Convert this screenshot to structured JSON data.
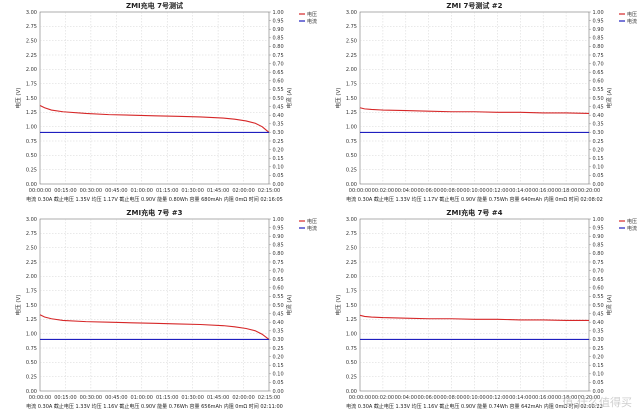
{
  "watermark": "值 什么值得买",
  "chart_data": [
    {
      "type": "line",
      "title": "ZMI充电 7号测试",
      "ylabel": "电压 (V)",
      "y2label": "电流 (A)",
      "ylim": [
        0,
        3.0
      ],
      "y2lim": [
        0,
        1.0
      ],
      "yticks": [
        "0.00",
        "0.25",
        "0.50",
        "0.75",
        "1.00",
        "1.25",
        "1.50",
        "1.75",
        "2.00",
        "2.25",
        "2.50",
        "2.75",
        "3.00"
      ],
      "y2ticks": [
        "0.00",
        "0.05",
        "0.10",
        "0.15",
        "0.20",
        "0.25",
        "0.30",
        "0.35",
        "0.40",
        "0.45",
        "0.50",
        "0.55",
        "0.60",
        "0.65",
        "0.70",
        "0.75",
        "0.80",
        "0.85",
        "0.90",
        "0.95",
        "1.00"
      ],
      "xticks": [
        "00:00:00",
        "00:15:00",
        "00:30:00",
        "00:45:00",
        "01:00:00",
        "01:15:00",
        "01:30:00",
        "01:45:00",
        "02:00:00",
        "02:15:00"
      ],
      "legend": [
        "电压",
        "电流"
      ],
      "legend_position": "top-right",
      "colors": {
        "voltage": "#d62728",
        "current": "#1f1fbf"
      },
      "x": [
        0,
        0.02,
        0.05,
        0.1,
        0.2,
        0.3,
        0.4,
        0.5,
        0.6,
        0.7,
        0.8,
        0.85,
        0.9,
        0.94,
        0.97,
        1.0
      ],
      "series": [
        {
          "name": "电压",
          "axis": "left",
          "values": [
            1.37,
            1.33,
            1.29,
            1.26,
            1.23,
            1.21,
            1.2,
            1.19,
            1.18,
            1.17,
            1.15,
            1.13,
            1.1,
            1.06,
            1.0,
            0.9
          ]
        },
        {
          "name": "电流",
          "axis": "right",
          "values": [
            0.3,
            0.3,
            0.3,
            0.3,
            0.3,
            0.3,
            0.3,
            0.3,
            0.3,
            0.3,
            0.3,
            0.3,
            0.3,
            0.3,
            0.3,
            0.3
          ]
        }
      ],
      "footer": "电流 0.30A  截止电压 1.35V  均压 1.17V  截止电压 0.90V  能量 0.80Wh  容量 680mAh  内阻 0mΩ  时间 02:16:05",
      "grid": true
    },
    {
      "type": "line",
      "title": "ZMI 7号测试 #2",
      "ylabel": "电压 (V)",
      "y2label": "电流 (A)",
      "ylim": [
        0,
        3.0
      ],
      "y2lim": [
        0,
        1.0
      ],
      "yticks": [
        "0.00",
        "0.25",
        "0.50",
        "0.75",
        "1.00",
        "1.25",
        "1.50",
        "1.75",
        "2.00",
        "2.25",
        "2.50",
        "2.75",
        "3.00"
      ],
      "y2ticks": [
        "0.00",
        "0.05",
        "0.10",
        "0.15",
        "0.20",
        "0.25",
        "0.30",
        "0.35",
        "0.40",
        "0.45",
        "0.50",
        "0.55",
        "0.60",
        "0.65",
        "0.70",
        "0.75",
        "0.80",
        "0.85",
        "0.90",
        "0.95",
        "1.00"
      ],
      "xticks": [
        "00:00:00",
        "00:02:00",
        "00:04:00",
        "00:06:00",
        "00:08:00",
        "00:10:00",
        "00:12:00",
        "00:14:00",
        "00:16:00",
        "00:18:00",
        "00:20:00"
      ],
      "legend": [
        "电压",
        "电流"
      ],
      "legend_position": "top-right",
      "colors": {
        "voltage": "#d62728",
        "current": "#1f1fbf"
      },
      "x": [
        0,
        0.02,
        0.05,
        0.1,
        0.2,
        0.3,
        0.4,
        0.5,
        0.6,
        0.7,
        0.8,
        0.9,
        1.0
      ],
      "series": [
        {
          "name": "电压",
          "axis": "left",
          "values": [
            1.33,
            1.31,
            1.3,
            1.29,
            1.28,
            1.27,
            1.26,
            1.26,
            1.25,
            1.25,
            1.24,
            1.24,
            1.23
          ]
        },
        {
          "name": "电流",
          "axis": "right",
          "values": [
            0.3,
            0.3,
            0.3,
            0.3,
            0.3,
            0.3,
            0.3,
            0.3,
            0.3,
            0.3,
            0.3,
            0.3,
            0.3
          ]
        }
      ],
      "footer": "电流 0.30A  截止电压 1.33V  均压 1.17V  截止电压 0.90V  能量 0.75Wh  容量 640mAh  内阻 0mΩ  时间 02:08:02",
      "grid": true
    },
    {
      "type": "line",
      "title": "ZMI充电 7号 #3",
      "ylabel": "电压 (V)",
      "y2label": "电流 (A)",
      "ylim": [
        0,
        3.0
      ],
      "y2lim": [
        0,
        1.0
      ],
      "yticks": [
        "0.00",
        "0.25",
        "0.50",
        "0.75",
        "1.00",
        "1.25",
        "1.50",
        "1.75",
        "2.00",
        "2.25",
        "2.50",
        "2.75",
        "3.00"
      ],
      "y2ticks": [
        "0.00",
        "0.05",
        "0.10",
        "0.15",
        "0.20",
        "0.25",
        "0.30",
        "0.35",
        "0.40",
        "0.45",
        "0.50",
        "0.55",
        "0.60",
        "0.65",
        "0.70",
        "0.75",
        "0.80",
        "0.85",
        "0.90",
        "0.95",
        "1.00"
      ],
      "xticks": [
        "00:00:00",
        "00:15:00",
        "00:30:00",
        "00:45:00",
        "01:00:00",
        "01:15:00",
        "01:30:00",
        "01:45:00",
        "02:00:00",
        "02:15:00"
      ],
      "legend": [
        "电压",
        "电流"
      ],
      "legend_position": "top-right",
      "colors": {
        "voltage": "#d62728",
        "current": "#1f1fbf"
      },
      "x": [
        0,
        0.02,
        0.05,
        0.1,
        0.2,
        0.3,
        0.4,
        0.5,
        0.6,
        0.7,
        0.8,
        0.85,
        0.9,
        0.94,
        0.97,
        1.0
      ],
      "series": [
        {
          "name": "电压",
          "axis": "left",
          "values": [
            1.33,
            1.29,
            1.26,
            1.23,
            1.21,
            1.2,
            1.19,
            1.18,
            1.17,
            1.16,
            1.14,
            1.12,
            1.09,
            1.05,
            0.99,
            0.9
          ]
        },
        {
          "name": "电流",
          "axis": "right",
          "values": [
            0.3,
            0.3,
            0.3,
            0.3,
            0.3,
            0.3,
            0.3,
            0.3,
            0.3,
            0.3,
            0.3,
            0.3,
            0.3,
            0.3,
            0.3,
            0.3
          ]
        }
      ],
      "footer": "电流 0.30A  截止电压 1.33V  均压 1.16V  截止电压 0.90V  能量 0.76Wh  容量 656mAh  内阻 0mΩ  时间 02:11:00",
      "grid": true
    },
    {
      "type": "line",
      "title": "ZMI充电 7号 #4",
      "ylabel": "电压 (V)",
      "y2label": "电流 (A)",
      "ylim": [
        0,
        3.0
      ],
      "y2lim": [
        0,
        1.0
      ],
      "yticks": [
        "0.00",
        "0.25",
        "0.50",
        "0.75",
        "1.00",
        "1.25",
        "1.50",
        "1.75",
        "2.00",
        "2.25",
        "2.50",
        "2.75",
        "3.00"
      ],
      "y2ticks": [
        "0.00",
        "0.05",
        "0.10",
        "0.15",
        "0.20",
        "0.25",
        "0.30",
        "0.35",
        "0.40",
        "0.45",
        "0.50",
        "0.55",
        "0.60",
        "0.65",
        "0.70",
        "0.75",
        "0.80",
        "0.85",
        "0.90",
        "0.95",
        "1.00"
      ],
      "xticks": [
        "00:00:00",
        "00:02:00",
        "00:04:00",
        "00:06:00",
        "00:08:00",
        "00:10:00",
        "00:12:00",
        "00:14:00",
        "00:16:00",
        "00:18:00",
        "00:20:00"
      ],
      "legend": [
        "电压",
        "电流"
      ],
      "legend_position": "top-right",
      "colors": {
        "voltage": "#d62728",
        "current": "#1f1fbf"
      },
      "x": [
        0,
        0.02,
        0.05,
        0.1,
        0.2,
        0.3,
        0.4,
        0.5,
        0.6,
        0.7,
        0.8,
        0.9,
        1.0
      ],
      "series": [
        {
          "name": "电压",
          "axis": "left",
          "values": [
            1.32,
            1.3,
            1.29,
            1.28,
            1.27,
            1.26,
            1.26,
            1.25,
            1.25,
            1.24,
            1.24,
            1.23,
            1.23
          ]
        },
        {
          "name": "电流",
          "axis": "right",
          "values": [
            0.3,
            0.3,
            0.3,
            0.3,
            0.3,
            0.3,
            0.3,
            0.3,
            0.3,
            0.3,
            0.3,
            0.3,
            0.3
          ]
        }
      ],
      "footer": "电流 0.30A  截止电压 1.33V  均压 1.16V  截止电压 0.90V  能量 0.74Wh  容量 642mAh  内阻 0mΩ  时间 02:08:22",
      "grid": true
    }
  ]
}
